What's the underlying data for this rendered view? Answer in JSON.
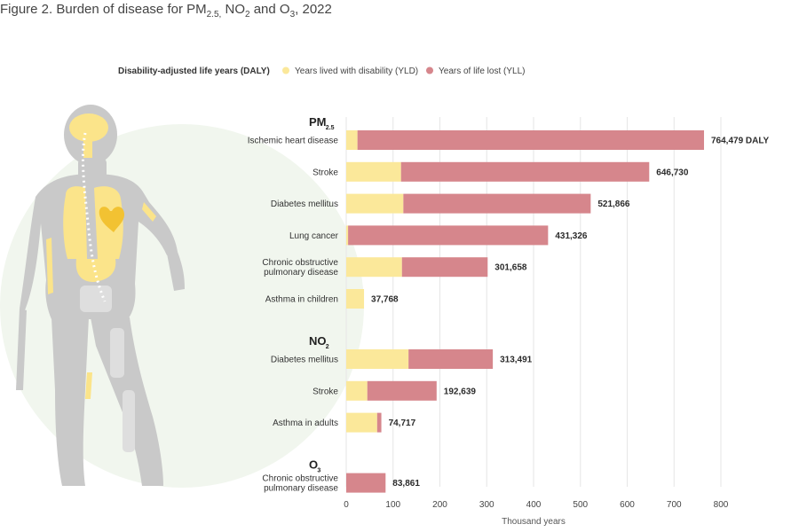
{
  "figure": {
    "title_prefix": "Figure 2. Burden of disease for PM",
    "title_pm_sub": "2.5,",
    "title_mid1": " NO",
    "title_no_sub": "2",
    "title_mid2": " and O",
    "title_o_sub": "3",
    "title_suffix": ", 2022"
  },
  "colors": {
    "yld": "#fbe89a",
    "yll": "#d6868c",
    "grid": "#e6e6e6",
    "body": "#c9c9c9",
    "organ": "#fbe48a",
    "halo": "#f1f6ee"
  },
  "chart_data": {
    "type": "bar",
    "orientation": "horizontal",
    "stacked": true,
    "legend": {
      "title": "Disability-adjusted life years (DALY)",
      "items": [
        {
          "key": "yld",
          "label": "Years lived with disability (YLD)"
        },
        {
          "key": "yll",
          "label": "Years of life lost (YLL)"
        }
      ],
      "placement": "top"
    },
    "groups": [
      {
        "label": "PM",
        "sub": "2.5",
        "rows": [
          {
            "label_lines": [
              "Ischemic heart disease"
            ],
            "yld": 24,
            "yll": 740,
            "total_label": "764,479 DALY"
          },
          {
            "label_lines": [
              "Stroke"
            ],
            "yld": 117,
            "yll": 530,
            "total_label": "646,730"
          },
          {
            "label_lines": [
              "Diabetes mellitus"
            ],
            "yld": 122,
            "yll": 400,
            "total_label": "521,866"
          },
          {
            "label_lines": [
              "Lung cancer"
            ],
            "yld": 4,
            "yll": 427,
            "total_label": "431,326"
          },
          {
            "label_lines": [
              "Chronic obstructive",
              "pulmonary disease"
            ],
            "yld": 119,
            "yll": 183,
            "total_label": "301,658"
          },
          {
            "label_lines": [
              "Asthma in children"
            ],
            "yld": 38,
            "yll": 0,
            "total_label": "37,768"
          }
        ]
      },
      {
        "label": "NO",
        "sub": "2",
        "rows": [
          {
            "label_lines": [
              "Diabetes mellitus"
            ],
            "yld": 133,
            "yll": 180,
            "total_label": "313,491"
          },
          {
            "label_lines": [
              "Stroke"
            ],
            "yld": 45,
            "yll": 148,
            "total_label": "192,639"
          },
          {
            "label_lines": [
              "Asthma in adults"
            ],
            "yld": 66,
            "yll": 9,
            "total_label": "74,717"
          }
        ]
      },
      {
        "label": "O",
        "sub": "3",
        "rows": [
          {
            "label_lines": [
              "Chronic obstructive",
              "pulmonary disease"
            ],
            "yld": 0,
            "yll": 84,
            "total_label": "83,861"
          }
        ]
      }
    ],
    "xlim": [
      0,
      800
    ],
    "xticks": [
      0,
      100,
      200,
      300,
      400,
      500,
      600,
      700,
      800
    ],
    "xlabel": "Thousand years",
    "grid": true
  }
}
